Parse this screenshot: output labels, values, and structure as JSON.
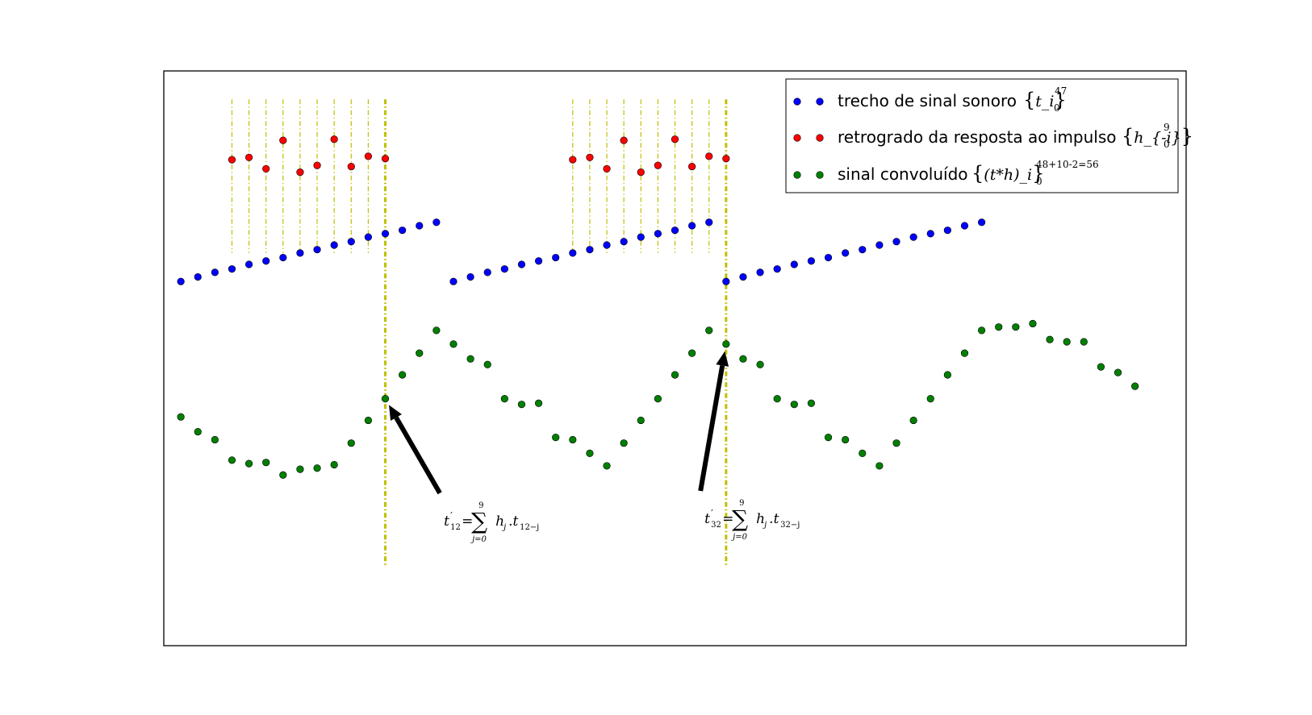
{
  "chart_data": {
    "type": "scatter",
    "title": "",
    "xlabel": "",
    "ylabel": "",
    "xlim": [
      -1,
      59
    ],
    "ylim": [
      -3.2,
      1.85
    ],
    "grid": false,
    "axes_ticks": false,
    "legend_position": "top-right",
    "series": [
      {
        "name": "trecho de sinal sonoro",
        "math": {
          "brace": "t_i",
          "sub": "0",
          "sup": "47"
        },
        "color": "#0000ff",
        "segments": [
          {
            "x_start": 0,
            "y": [
              0,
              0.04,
              0.08,
              0.11,
              0.15,
              0.18,
              0.21,
              0.25,
              0.28,
              0.32,
              0.35,
              0.39,
              0.42,
              0.45,
              0.49,
              0.52
            ]
          },
          {
            "x_start": 16,
            "y": [
              0,
              0.04,
              0.08,
              0.11,
              0.15,
              0.18,
              0.21,
              0.25,
              0.28,
              0.32,
              0.35,
              0.39,
              0.42,
              0.45,
              0.49,
              0.52
            ]
          },
          {
            "x_start": 32,
            "y": [
              0,
              0.04,
              0.08,
              0.11,
              0.15,
              0.18,
              0.21,
              0.25,
              0.28,
              0.32,
              0.35,
              0.39,
              0.42,
              0.45,
              0.49,
              0.52
            ]
          }
        ]
      },
      {
        "name": "retrogrado da resposta ao impulso",
        "math": {
          "brace": "h_{-i}",
          "sub": "0",
          "sup": "9"
        },
        "color": "#ff0000",
        "segments": [
          {
            "x_start": 3,
            "y": [
              1.07,
              1.09,
              0.99,
              1.24,
              0.96,
              1.02,
              1.25,
              1.01,
              1.1,
              1.08
            ]
          },
          {
            "x_start": 23,
            "y": [
              1.07,
              1.09,
              0.99,
              1.24,
              0.96,
              1.02,
              1.25,
              1.01,
              1.1,
              1.08
            ]
          }
        ]
      },
      {
        "name": "sinal convoluído",
        "math": {
          "brace": "(t*h)_i",
          "sub": "0",
          "sup": "48+10-2=56"
        },
        "color": "#008000",
        "points": [
          [
            0,
            -1.19
          ],
          [
            1,
            -1.32
          ],
          [
            2,
            -1.39
          ],
          [
            3,
            -1.57
          ],
          [
            4,
            -1.6
          ],
          [
            5,
            -1.59
          ],
          [
            6,
            -1.7
          ],
          [
            7,
            -1.65
          ],
          [
            8,
            -1.64
          ],
          [
            9,
            -1.61
          ],
          [
            10,
            -1.42
          ],
          [
            11,
            -1.22
          ],
          [
            12,
            -1.03
          ],
          [
            13,
            -0.82
          ],
          [
            14,
            -0.63
          ],
          [
            15,
            -0.43
          ],
          [
            16,
            -0.55
          ],
          [
            17,
            -0.68
          ],
          [
            18,
            -0.73
          ],
          [
            19,
            -1.03
          ],
          [
            20,
            -1.08
          ],
          [
            21,
            -1.07
          ],
          [
            22,
            -1.37
          ],
          [
            23,
            -1.39
          ],
          [
            24,
            -1.51
          ],
          [
            25,
            -1.62
          ],
          [
            26,
            -1.42
          ],
          [
            27,
            -1.22
          ],
          [
            28,
            -1.03
          ],
          [
            29,
            -0.82
          ],
          [
            30,
            -0.63
          ],
          [
            31,
            -0.43
          ],
          [
            32,
            -0.55
          ],
          [
            33,
            -0.68
          ],
          [
            34,
            -0.73
          ],
          [
            35,
            -1.03
          ],
          [
            36,
            -1.08
          ],
          [
            37,
            -1.07
          ],
          [
            38,
            -1.37
          ],
          [
            39,
            -1.39
          ],
          [
            40,
            -1.51
          ],
          [
            41,
            -1.62
          ],
          [
            42,
            -1.42
          ],
          [
            43,
            -1.22
          ],
          [
            44,
            -1.03
          ],
          [
            45,
            -0.82
          ],
          [
            46,
            -0.63
          ],
          [
            47,
            -0.43
          ],
          [
            48,
            -0.4
          ],
          [
            49,
            -0.4
          ],
          [
            50,
            -0.37
          ],
          [
            51,
            -0.51
          ],
          [
            52,
            -0.53
          ],
          [
            53,
            -0.53
          ],
          [
            54,
            -0.75
          ],
          [
            55,
            -0.8
          ],
          [
            56,
            -0.92
          ]
        ]
      }
    ],
    "guide_lines": {
      "thin": {
        "color": "#bfbf00",
        "y_range": [
          0.25,
          1.6
        ],
        "x": [
          3,
          4,
          5,
          6,
          7,
          8,
          9,
          10,
          11,
          23,
          24,
          25,
          26,
          27,
          28,
          29,
          30,
          31
        ]
      },
      "thick": {
        "color": "#bfbf00",
        "y_range": [
          -2.5,
          1.6
        ],
        "x": [
          12,
          32
        ]
      }
    },
    "annotations": [
      {
        "id": "t12",
        "xy": [
          12,
          -1.03
        ],
        "xytext": [
          15.2,
          -1.86
        ],
        "lhs": "t",
        "lhs_prime": "′",
        "lhs_sub": "12",
        "eq": "=",
        "sum_top": "9",
        "sum_bottom": "j=0",
        "term_h": "h",
        "term_h_sub": "j",
        "term_dot": ".t",
        "term_t_sub": "12−j"
      },
      {
        "id": "t32",
        "xy": [
          32,
          -0.55
        ],
        "xytext": [
          30.5,
          -1.84
        ],
        "lhs": "t",
        "lhs_prime": "′",
        "lhs_sub": "32",
        "eq": "=",
        "sum_top": "9",
        "sum_bottom": "j=0",
        "term_h": "h",
        "term_h_sub": "j",
        "term_dot": ".t",
        "term_t_sub": "32−j"
      }
    ]
  }
}
